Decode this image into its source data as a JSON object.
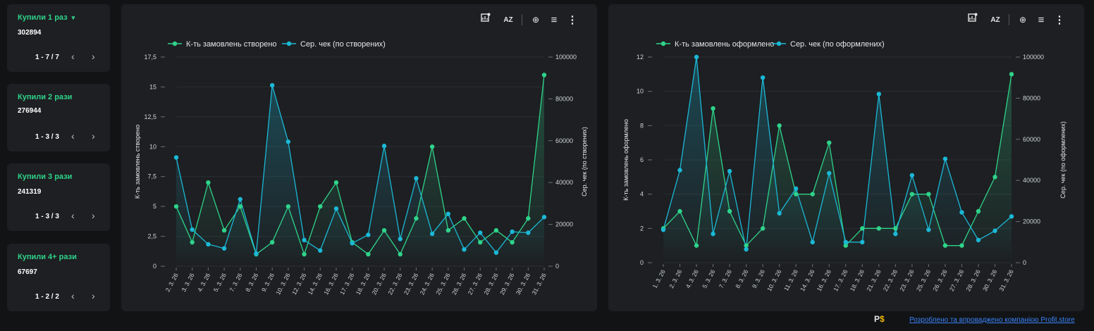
{
  "cards": [
    {
      "title": "Купили 1 раз",
      "has_caret": true,
      "value": "302894",
      "pager": "1 - 7 / 7"
    },
    {
      "title": "Купили 2 рази",
      "has_caret": false,
      "value": "276944",
      "pager": "1 - 3 / 3"
    },
    {
      "title": "Купили 3 рази",
      "has_caret": false,
      "value": "241319",
      "pager": "1 - 3 / 3"
    },
    {
      "title": "Купили 4+ рази",
      "has_caret": false,
      "value": "67697",
      "pager": "1 - 2 / 2"
    }
  ],
  "icons": {
    "caret": "▾",
    "prev": "‹",
    "next": "›",
    "chart_settings": "chart-settings-icon",
    "sort_az": "AZ",
    "zoom": "⊕",
    "filter": "≡",
    "more": "⋮"
  },
  "colors": {
    "green": "#2fd38a",
    "cyan": "#1bb8d6",
    "background": "#111315",
    "panel": "#1d1f22"
  },
  "charts": [
    {
      "id": "created",
      "legend": [
        "К-ть замовлень створено",
        "Сер. чек (по створених)"
      ],
      "y1_label": "К-ть замовлень створено",
      "y2_label": "Сер. чек (по створених)",
      "y1_ticks": [
        "0",
        "2,5",
        "5",
        "7,5",
        "10",
        "12,5",
        "15",
        "17,5"
      ],
      "y2_ticks": [
        "0",
        "20000",
        "40000",
        "60000",
        "80000",
        "100000"
      ],
      "chart_data": {
        "type": "line",
        "x": [
          "2. 3. 26",
          "3. 3. 26",
          "4. 3. 26",
          "5. 3. 26",
          "7. 3. 26",
          "8. 3. 26",
          "9. 3. 26",
          "10. 3. 26",
          "12. 3. 26",
          "14. 3. 26",
          "16. 3. 26",
          "17. 3. 26",
          "18. 3. 26",
          "20. 3. 26",
          "22. 3. 26",
          "23. 3. 26",
          "24. 3. 26",
          "25. 3. 26",
          "26. 3. 26",
          "27. 3. 26",
          "28. 3. 26",
          "29. 3. 26",
          "30. 3. 26",
          "31. 3. 26"
        ],
        "y1_range": [
          0,
          17.5
        ],
        "y2_range": [
          0,
          100000
        ],
        "grid": true,
        "legend_position": "top-left",
        "series": [
          {
            "name": "К-ть замовлень створено",
            "axis": "left",
            "values": [
              5,
              2,
              7,
              3,
              5,
              1,
              2,
              5,
              1,
              5,
              7,
              2,
              1,
              3,
              1,
              4,
              10,
              3,
              4,
              2,
              3,
              2,
              4,
              16
            ]
          },
          {
            "name": "Сер. чек (по створених)",
            "axis": "right",
            "values": [
              52000,
              17500,
              10500,
              8500,
              32000,
              6000,
              86500,
              59500,
              12500,
              7500,
              27500,
              11000,
              15000,
              57500,
              13000,
              42000,
              15500,
              25000,
              8000,
              16000,
              6500,
              16500,
              16000,
              23500
            ]
          }
        ]
      }
    },
    {
      "id": "placed",
      "legend": [
        "К-ть замовлень оформлено",
        "Сер. чек (по оформлених)"
      ],
      "y1_label": "К-ть замовлень оформлено",
      "y2_label": "Сер. чек (по оформлених)",
      "y1_ticks": [
        "0",
        "2",
        "4",
        "6",
        "8",
        "10",
        "12"
      ],
      "y2_ticks": [
        "0",
        "20000",
        "40000",
        "60000",
        "80000",
        "100000"
      ],
      "chart_data": {
        "type": "line",
        "x": [
          "1. 3. 26",
          "2. 3. 26",
          "4. 3. 26",
          "5. 3. 26",
          "7. 3. 26",
          "8. 3. 26",
          "9. 3. 26",
          "10. 3. 26",
          "11. 3. 26",
          "14. 3. 26",
          "16. 3. 26",
          "17. 3. 26",
          "18. 3. 26",
          "21. 3. 26",
          "22. 3. 26",
          "23. 3. 26",
          "25. 3. 26",
          "26. 3. 26",
          "27. 3. 26",
          "28. 3. 26",
          "30. 3. 26",
          "31. 3. 26"
        ],
        "y1_range": [
          0,
          12
        ],
        "y2_range": [
          0,
          100000
        ],
        "grid": true,
        "legend_position": "top-left",
        "series": [
          {
            "name": "К-ть замовлень оформлено",
            "axis": "left",
            "values": [
              2,
              3,
              1,
              9,
              3,
              1,
              2,
              8,
              4,
              4,
              7,
              1,
              2,
              2,
              2,
              4,
              4,
              1,
              1,
              3,
              5,
              11
            ]
          },
          {
            "name": "Сер. чек (по оформлених)",
            "axis": "right",
            "values": [
              16000,
              45000,
              100000,
              14000,
              44500,
              6500,
              90000,
              24000,
              36000,
              10000,
              43500,
              10000,
              10000,
              82000,
              14000,
              42500,
              16000,
              50500,
              24500,
              11000,
              15500,
              22500
            ]
          }
        ]
      }
    }
  ],
  "footer": {
    "logo_text": "P",
    "logo_accent": "$",
    "link_text": "Розроблено та впроваджено компанією Profit.store"
  }
}
